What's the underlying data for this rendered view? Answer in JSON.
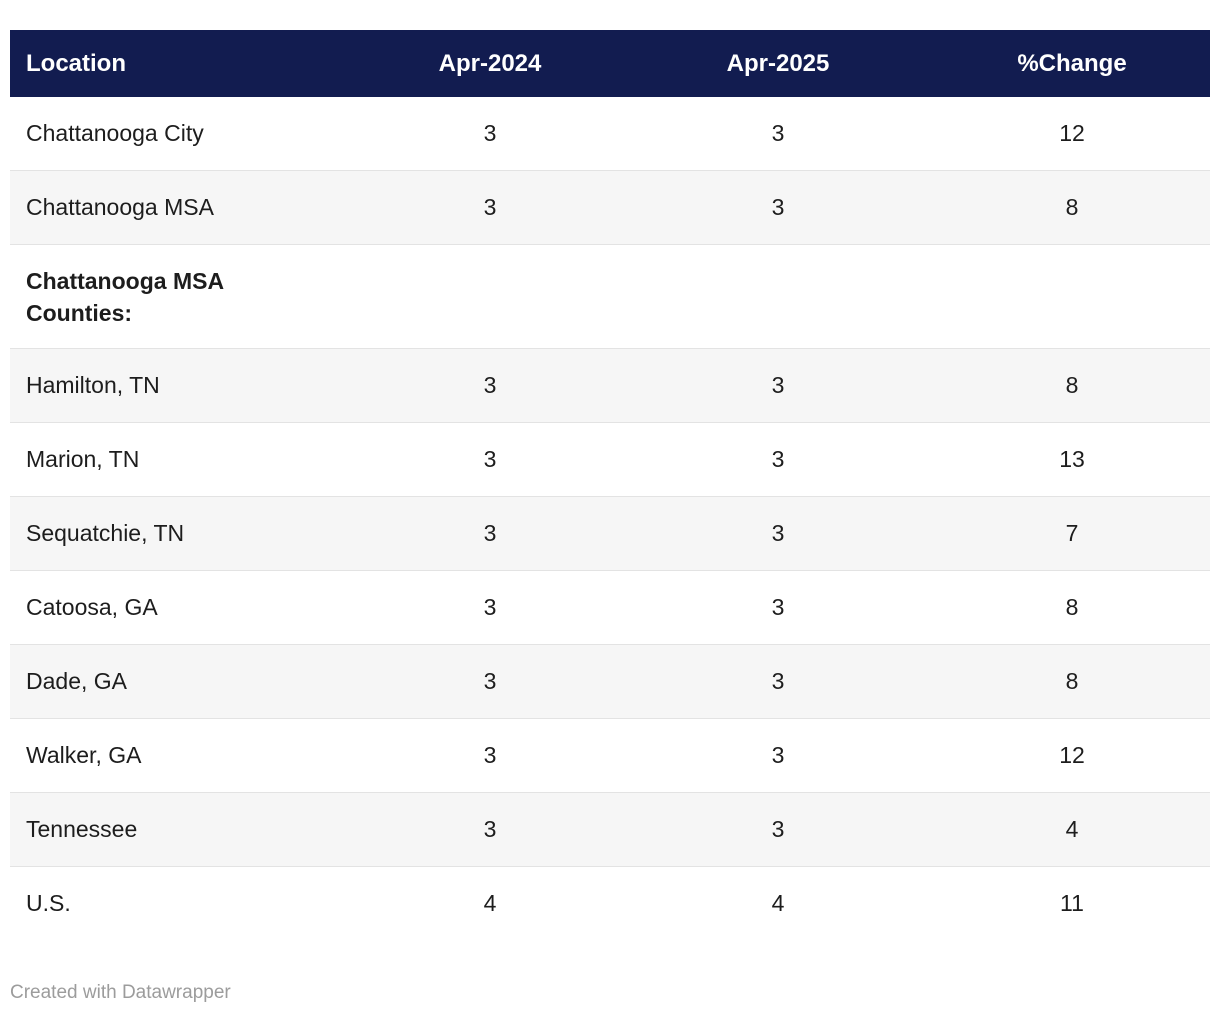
{
  "chart_data": {
    "type": "table",
    "columns": [
      "Location",
      "Apr-2024",
      "Apr-2025",
      "%Change"
    ],
    "rows": [
      [
        "Chattanooga City",
        "3",
        "3",
        "12"
      ],
      [
        "Chattanooga MSA",
        "3",
        "3",
        "8"
      ],
      [
        "Chattanooga MSA Counties:",
        null,
        null,
        null
      ],
      [
        "Hamilton, TN",
        "3",
        "3",
        "8"
      ],
      [
        "Marion, TN",
        "3",
        "3",
        "13"
      ],
      [
        "Sequatchie, TN",
        "3",
        "3",
        "7"
      ],
      [
        "Catoosa, GA",
        "3",
        "3",
        "8"
      ],
      [
        "Dade, GA",
        "3",
        "3",
        "8"
      ],
      [
        "Walker, GA",
        "3",
        "3",
        "12"
      ],
      [
        "Tennessee",
        "3",
        "3",
        "4"
      ],
      [
        "U.S.",
        "4",
        "4",
        "11"
      ]
    ],
    "legend_position": "none",
    "grid": "horizontal-row-borders"
  },
  "footer": {
    "credit": "Created with Datawrapper"
  },
  "colors": {
    "header_bg": "#121c50",
    "header_text": "#ffffff",
    "body_text": "#1d1d1d",
    "stripe_bg": "#f6f6f6",
    "row_border": "#e3e3e3",
    "footer_text": "#9c9c9c"
  }
}
